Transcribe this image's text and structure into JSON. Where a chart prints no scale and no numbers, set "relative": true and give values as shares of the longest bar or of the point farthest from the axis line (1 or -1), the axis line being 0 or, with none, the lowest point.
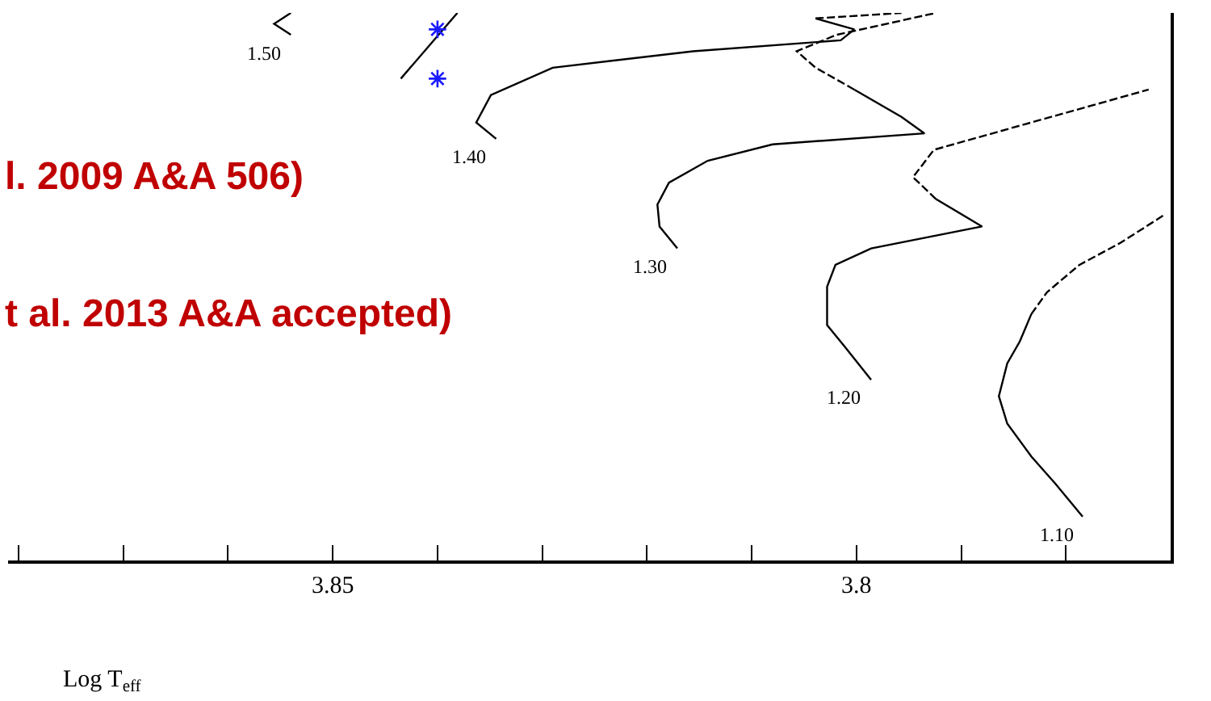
{
  "chart_data": {
    "type": "line",
    "relative": true,
    "xlabel": "Log T$_{eff}$",
    "xlim": [
      3.881,
      3.77
    ],
    "xticks": [
      {
        "value": 3.88,
        "label": null
      },
      {
        "value": 3.87,
        "label": null
      },
      {
        "value": 3.86,
        "label": null
      },
      3.85,
      {
        "value": 3.84,
        "label": null
      },
      {
        "value": 3.83,
        "label": null
      },
      {
        "value": 3.82,
        "label": null
      },
      {
        "value": 3.81,
        "label": null
      },
      3.8,
      {
        "value": 3.79,
        "label": null
      },
      {
        "value": 3.78,
        "label": null
      }
    ],
    "marker": "none",
    "tick_labels": "x",
    "series": [
      {
        "name": "1.10",
        "color": "#000000",
        "line_style": "solid",
        "x": [
          3.7784,
          3.781,
          3.7833,
          3.7856,
          3.7864,
          3.7856,
          3.7844,
          3.7833
        ],
        "values": [
          0.08,
          0.14,
          0.19,
          0.25,
          0.3,
          0.36,
          0.4,
          0.45
        ]
      },
      {
        "color": "#000000",
        "line_style": "dashed",
        "x": [
          3.7833,
          3.7818,
          3.7787,
          3.7748,
          3.7707
        ],
        "values": [
          0.45,
          0.49,
          0.54,
          0.58,
          0.63
        ]
      },
      {
        "name": "1.20",
        "color": "#000000",
        "line_style": "solid",
        "x": [
          3.7986,
          3.8011,
          3.8028,
          3.8028,
          3.802,
          3.7986,
          3.788,
          3.7924
        ],
        "values": [
          0.33,
          0.39,
          0.43,
          0.5,
          0.54,
          0.57,
          0.61,
          0.66
        ]
      },
      {
        "color": "#000000",
        "line_style": "dashed",
        "x": [
          3.7924,
          3.7946,
          3.7926,
          3.7833,
          3.7721
        ],
        "values": [
          0.66,
          0.7,
          0.75,
          0.8,
          0.86
        ]
      },
      {
        "name": "1.30",
        "color": "#000000",
        "line_style": "solid",
        "x": [
          3.8171,
          3.8188,
          3.819,
          3.8179,
          3.8142,
          3.808,
          3.7935,
          3.7957,
          3.8002
        ],
        "values": [
          0.57,
          0.61,
          0.65,
          0.69,
          0.73,
          0.76,
          0.78,
          0.81,
          0.86
        ]
      },
      {
        "color": "#000000",
        "line_style": "dashed",
        "x": [
          3.8002,
          3.8039,
          3.8057,
          3.8019,
          3.7924
        ],
        "values": [
          0.86,
          0.9,
          0.93,
          0.96,
          1.0
        ]
      },
      {
        "name": "1.40",
        "color": "#000000",
        "line_style": "solid",
        "x": [
          3.8344,
          3.8363,
          3.8349,
          3.829,
          3.8156,
          3.8015,
          3.8002,
          3.8039
        ],
        "values": [
          0.77,
          0.8,
          0.85,
          0.9,
          0.93,
          0.95,
          0.97,
          0.99
        ]
      },
      {
        "color": "#000000",
        "line_style": "dashed",
        "x": [
          3.8039,
          3.7957
        ],
        "values": [
          0.99,
          1.0
        ]
      },
      {
        "name": "1.50",
        "color": "#000000",
        "line_style": "solid",
        "x": [
          3.854,
          3.8556,
          3.854
        ],
        "values": [
          0.96,
          0.98,
          1.0
        ]
      },
      {
        "color": "#000000",
        "line_style": "solid",
        "x": [
          3.8435,
          3.8381
        ],
        "values": [
          0.88,
          1.0
        ]
      },
      {
        "type": "scatter",
        "marker": "cross",
        "color": "#1a1aff",
        "x": [
          3.84,
          3.84
        ],
        "values": [
          0.97,
          0.88
        ]
      }
    ],
    "annotations": [
      "l. 2009 A&A 506)",
      "t al. 2013 A&A accepted)"
    ]
  }
}
